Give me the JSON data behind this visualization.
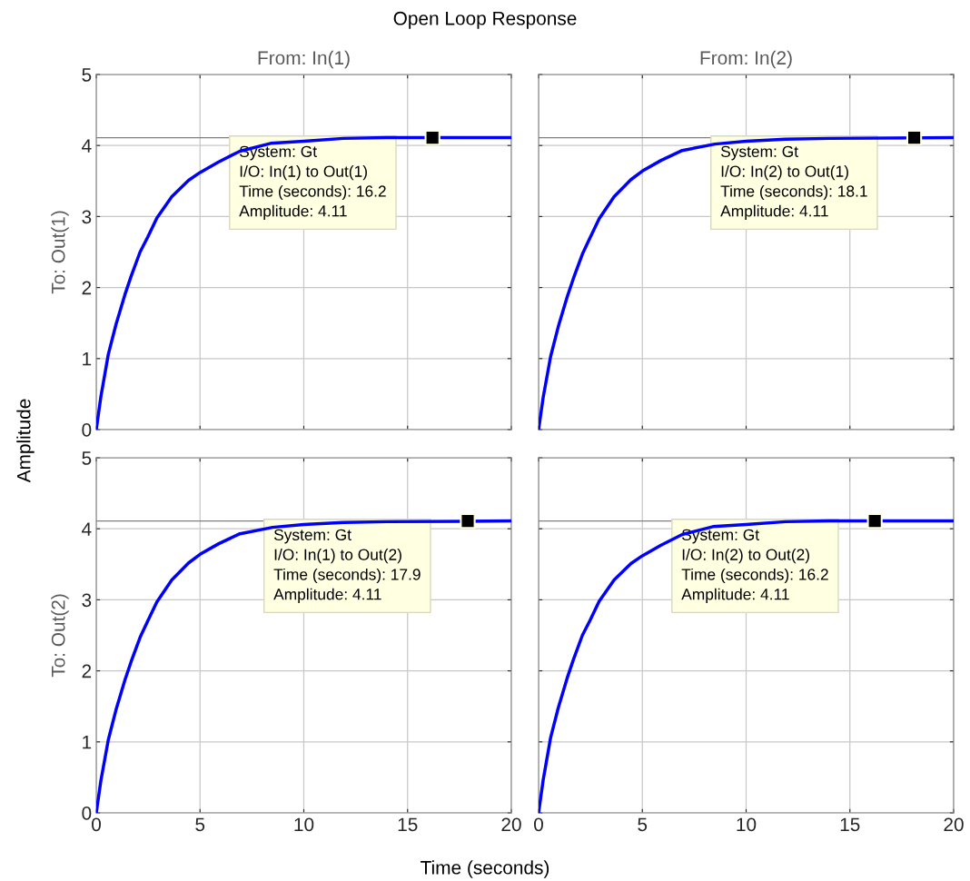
{
  "chart_data": [
    {
      "type": "line",
      "title": "From: In(1)",
      "ylabel": "To: Out(1)",
      "xlim": [
        0,
        20
      ],
      "ylim": [
        0,
        5
      ],
      "xticks": [
        0,
        5,
        10,
        15,
        20
      ],
      "yticks": [
        0,
        1,
        2,
        3,
        4,
        5
      ],
      "grid": true,
      "tick_labels": "y",
      "series": [
        {
          "color": "#0000ff",
          "x": [
            0,
            0.22,
            0.58,
            0.95,
            1.38,
            1.68,
            2.11,
            2.48,
            2.92,
            3.64,
            4.45,
            5,
            5.9,
            6.92,
            8.4,
            10,
            11.9,
            14,
            20
          ],
          "values": [
            0,
            0.46,
            1.06,
            1.48,
            1.9,
            2.16,
            2.5,
            2.71,
            2.98,
            3.28,
            3.51,
            3.62,
            3.77,
            3.92,
            4.03,
            4.06,
            4.1,
            4.11,
            4.11
          ]
        },
        {
          "type": "scatter",
          "marker": "square",
          "color": "#000000",
          "x": [
            16.2
          ],
          "values": [
            4.11
          ]
        }
      ],
      "ref_lines": [
        {
          "axis": "y",
          "value": 4.11,
          "color": "#808080"
        }
      ],
      "annotations": [
        "System: Gt\nI/O: In(1) to Out(1)\nTime (seconds): 16.2\nAmplitude: 4.11",
        "Open Loop Response",
        "Amplitude",
        "Time (seconds)"
      ]
    },
    {
      "type": "line",
      "title": "From: In(2)",
      "xlim": [
        0,
        20
      ],
      "ylim": [
        0,
        5
      ],
      "xticks": [
        0,
        5,
        10,
        15,
        20
      ],
      "yticks": [
        0,
        1,
        2,
        3,
        4,
        5
      ],
      "grid": true,
      "tick_labels": false,
      "series": [
        {
          "color": "#0000ff",
          "x": [
            0,
            0.22,
            0.58,
            0.95,
            1.38,
            1.68,
            2.11,
            2.48,
            2.92,
            3.64,
            4.45,
            5,
            5.9,
            6.92,
            8.5,
            10,
            11.9,
            14,
            20
          ],
          "values": [
            0,
            0.45,
            1.03,
            1.45,
            1.87,
            2.13,
            2.47,
            2.7,
            2.97,
            3.28,
            3.52,
            3.64,
            3.79,
            3.93,
            4.02,
            4.06,
            4.09,
            4.1,
            4.11
          ]
        },
        {
          "type": "scatter",
          "marker": "square",
          "color": "#000000",
          "x": [
            18.1
          ],
          "values": [
            4.11
          ]
        }
      ],
      "ref_lines": [
        {
          "axis": "y",
          "value": 4.11,
          "color": "#808080"
        }
      ],
      "annotations": [
        "System: Gt\nI/O: In(2) to Out(1)\nTime (seconds): 18.1\nAmplitude: 4.11"
      ]
    },
    {
      "type": "line",
      "ylabel": "To: Out(2)",
      "xlim": [
        0,
        20
      ],
      "ylim": [
        0,
        5
      ],
      "xticks": [
        0,
        5,
        10,
        15,
        20
      ],
      "yticks": [
        0,
        1,
        2,
        3,
        4,
        5
      ],
      "grid": true,
      "series": [
        {
          "color": "#0000ff",
          "x": [
            0,
            0.22,
            0.58,
            0.95,
            1.38,
            1.68,
            2.11,
            2.48,
            2.92,
            3.64,
            4.45,
            5,
            5.9,
            6.92,
            8.5,
            10,
            11.9,
            14,
            20
          ],
          "values": [
            0,
            0.45,
            1.03,
            1.45,
            1.87,
            2.13,
            2.47,
            2.7,
            2.97,
            3.28,
            3.52,
            3.64,
            3.79,
            3.93,
            4.02,
            4.06,
            4.09,
            4.1,
            4.11
          ]
        },
        {
          "type": "scatter",
          "marker": "square",
          "color": "#000000",
          "x": [
            17.9
          ],
          "values": [
            4.11
          ]
        }
      ],
      "ref_lines": [
        {
          "axis": "y",
          "value": 4.11,
          "color": "#808080"
        }
      ],
      "annotations": [
        "System: Gt\nI/O: In(1) to Out(2)\nTime (seconds): 17.9\nAmplitude: 4.11"
      ]
    },
    {
      "type": "line",
      "xlim": [
        0,
        20
      ],
      "ylim": [
        0,
        5
      ],
      "xticks": [
        0,
        5,
        10,
        15,
        20
      ],
      "yticks": [
        0,
        1,
        2,
        3,
        4,
        5
      ],
      "grid": true,
      "tick_labels": "x",
      "series": [
        {
          "color": "#0000ff",
          "x": [
            0,
            0.22,
            0.58,
            0.95,
            1.38,
            1.68,
            2.11,
            2.48,
            2.92,
            3.64,
            4.45,
            5,
            5.9,
            6.92,
            8.4,
            10,
            11.9,
            14,
            20
          ],
          "values": [
            0,
            0.46,
            1.06,
            1.48,
            1.9,
            2.16,
            2.5,
            2.71,
            2.98,
            3.28,
            3.51,
            3.62,
            3.77,
            3.92,
            4.03,
            4.06,
            4.1,
            4.11,
            4.11
          ]
        },
        {
          "type": "scatter",
          "marker": "square",
          "color": "#000000",
          "x": [
            16.2
          ],
          "values": [
            4.11
          ]
        }
      ],
      "ref_lines": [
        {
          "axis": "y",
          "value": 4.11,
          "color": "#808080"
        }
      ],
      "annotations": [
        "System: Gt\nI/O: In(2) to Out(2)\nTime (seconds): 16.2\nAmplitude: 4.11"
      ]
    }
  ]
}
